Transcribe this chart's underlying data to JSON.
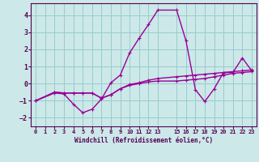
{
  "xlabel": "Windchill (Refroidissement éolien,°C)",
  "background_color": "#cce8e8",
  "grid_color": "#99cccc",
  "line_color": "#990099",
  "xlim": [
    -0.5,
    23.5
  ],
  "ylim": [
    -2.5,
    4.7
  ],
  "yticks": [
    -2,
    -1,
    0,
    1,
    2,
    3,
    4
  ],
  "xticks": [
    0,
    1,
    2,
    3,
    4,
    5,
    6,
    7,
    8,
    9,
    10,
    11,
    12,
    13,
    15,
    16,
    17,
    18,
    19,
    20,
    21,
    22,
    23
  ],
  "xtick_labels": [
    "0",
    "1",
    "2",
    "3",
    "4",
    "5",
    "6",
    "7",
    "8",
    "9",
    "10",
    "11",
    "12",
    "13",
    "15",
    "16",
    "17",
    "18",
    "19",
    "20",
    "21",
    "22",
    "23"
  ],
  "series1_x": [
    0,
    2,
    3,
    4,
    5,
    6,
    7,
    8,
    9,
    10,
    11,
    12,
    13,
    15,
    16,
    17,
    18,
    19,
    20,
    21,
    22,
    23
  ],
  "series1_y": [
    -1.0,
    -0.55,
    -0.6,
    -1.2,
    -1.7,
    -1.5,
    -0.9,
    0.05,
    0.5,
    1.8,
    2.65,
    3.45,
    4.3,
    4.3,
    2.5,
    -0.35,
    -1.05,
    -0.3,
    0.65,
    0.65,
    1.5,
    0.75
  ],
  "series2_x": [
    0,
    2,
    3,
    4,
    5,
    6,
    7,
    8,
    9,
    10,
    11,
    12,
    13,
    15,
    16,
    17,
    18,
    19,
    20,
    21,
    22,
    23
  ],
  "series2_y": [
    -1.0,
    -0.5,
    -0.55,
    -0.55,
    -0.55,
    -0.55,
    -0.85,
    -0.65,
    -0.3,
    -0.05,
    0.05,
    0.2,
    0.3,
    0.4,
    0.45,
    0.5,
    0.55,
    0.6,
    0.65,
    0.7,
    0.75,
    0.8
  ],
  "series3_x": [
    0,
    2,
    3,
    4,
    5,
    6,
    7,
    8,
    9,
    10,
    11,
    12,
    13,
    15,
    16,
    17,
    18,
    19,
    20,
    21,
    22,
    23
  ],
  "series3_y": [
    -1.0,
    -0.5,
    -0.55,
    -0.55,
    -0.55,
    -0.55,
    -0.85,
    -0.65,
    -0.3,
    -0.1,
    0.0,
    0.1,
    0.15,
    0.15,
    0.2,
    0.25,
    0.3,
    0.4,
    0.5,
    0.6,
    0.65,
    0.7
  ],
  "marker": "+",
  "markersize": 3,
  "linewidth": 1.0
}
